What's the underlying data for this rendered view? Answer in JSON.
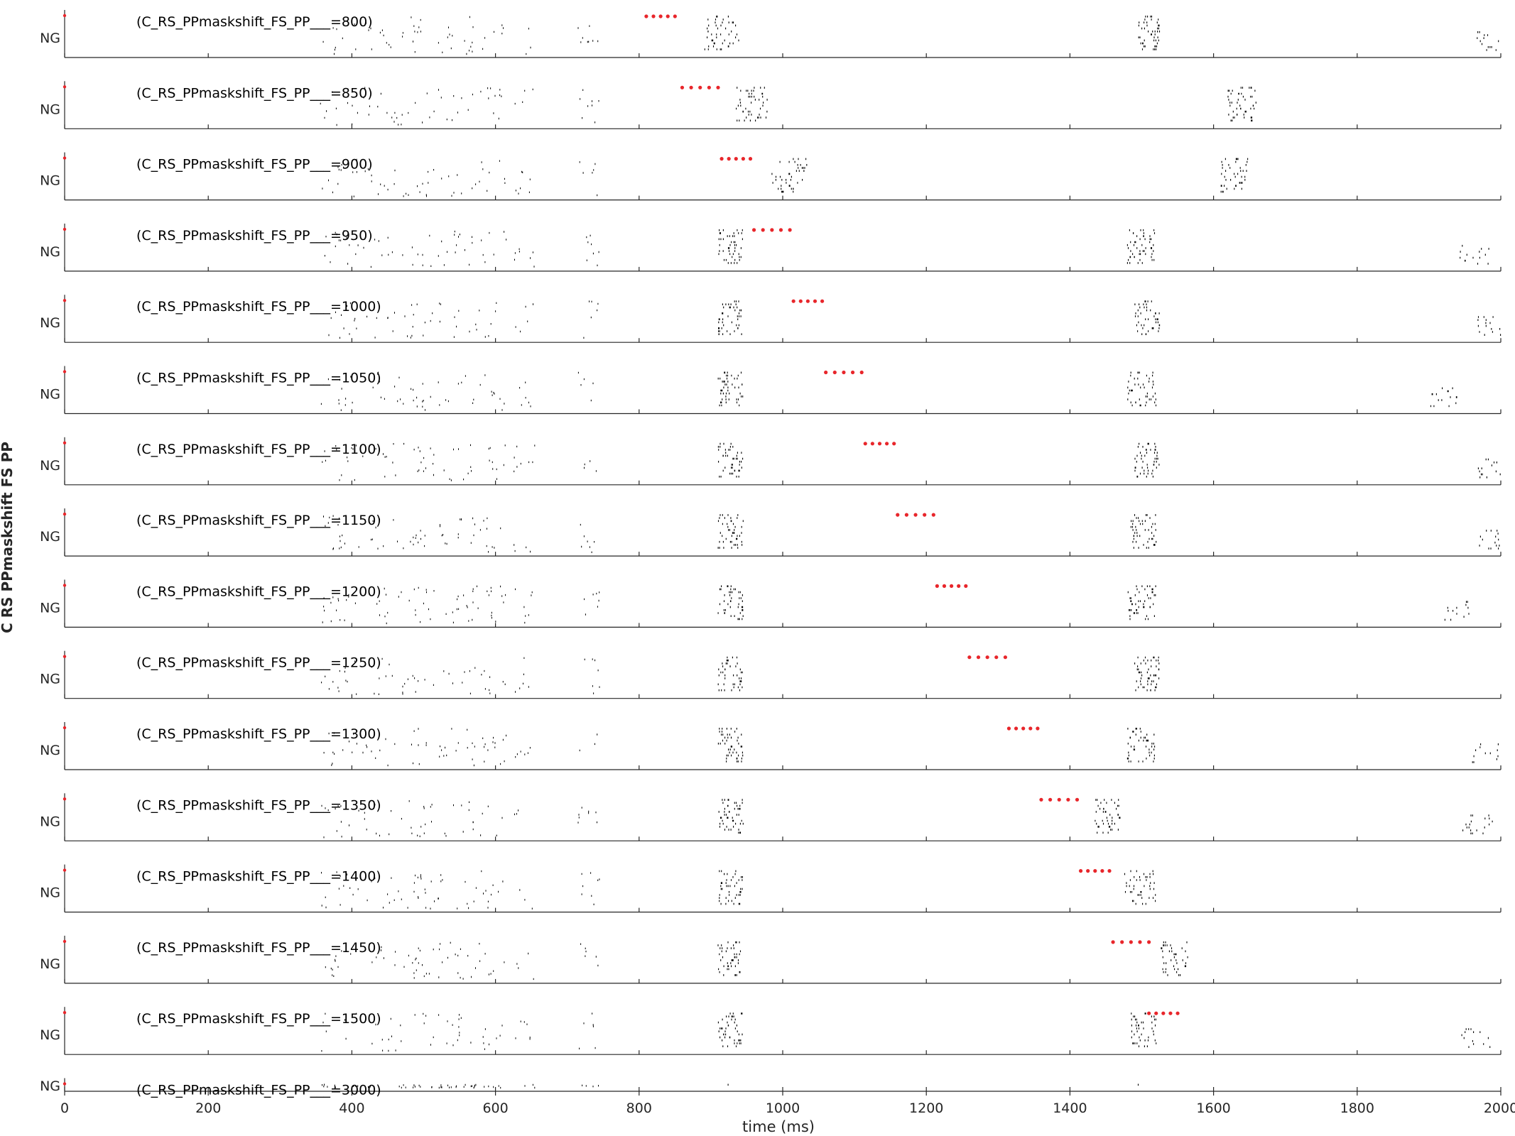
{
  "chart_data": {
    "type": "scatter",
    "plot_kind": "raster",
    "xlabel": "time (ms)",
    "ylabel": "C RS PPmaskshift FS PP",
    "xlim": [
      0,
      2000
    ],
    "xticks": [
      0,
      200,
      400,
      600,
      800,
      1000,
      1200,
      1400,
      1600,
      1800,
      2000
    ],
    "xtick_labels": [
      "0",
      "200",
      "400",
      "600",
      "800",
      "1000",
      "1200",
      "1400",
      "1600",
      "1800",
      "2000"
    ],
    "row_ytick_label": "NG",
    "spike_color": "#000000",
    "stimulus_color": "#e8262b",
    "panels": [
      {
        "label": "(C_RS_PPmaskshift_FS_PP___=800)",
        "value": 800,
        "stim_start": 810,
        "stim_end": 850,
        "burst1_start": 890,
        "burst1_end": 940,
        "burst2_start": 1495,
        "burst2_end": 1525,
        "burst3_start": 1965,
        "burst3_end": 2000
      },
      {
        "label": "(C_RS_PPmaskshift_FS_PP___=850)",
        "value": 850,
        "stim_start": 860,
        "stim_end": 910,
        "burst1_start": 935,
        "burst1_end": 980,
        "burst2_start": 1620,
        "burst2_end": 1660,
        "burst3_start": null,
        "burst3_end": null
      },
      {
        "label": "(C_RS_PPmaskshift_FS_PP___=900)",
        "value": 900,
        "stim_start": 915,
        "stim_end": 955,
        "burst1_start": 985,
        "burst1_end": 1035,
        "burst2_start": 1610,
        "burst2_end": 1650,
        "burst3_start": null,
        "burst3_end": null
      },
      {
        "label": "(C_RS_PPmaskshift_FS_PP___=950)",
        "value": 950,
        "stim_start": 960,
        "stim_end": 1010,
        "burst1_start": 910,
        "burst1_end": 945,
        "burst2_start": 1480,
        "burst2_end": 1520,
        "burst3_start": 1940,
        "burst3_end": 1985
      },
      {
        "label": "(C_RS_PPmaskshift_FS_PP___=1000)",
        "value": 1000,
        "stim_start": 1015,
        "stim_end": 1055,
        "burst1_start": 910,
        "burst1_end": 945,
        "burst2_start": 1490,
        "burst2_end": 1525,
        "burst3_start": 1965,
        "burst3_end": 2000
      },
      {
        "label": "(C_RS_PPmaskshift_FS_PP___=1050)",
        "value": 1050,
        "stim_start": 1060,
        "stim_end": 1110,
        "burst1_start": 910,
        "burst1_end": 945,
        "burst2_start": 1480,
        "burst2_end": 1520,
        "burst3_start": 1900,
        "burst3_end": 1940
      },
      {
        "label": "(C_RS_PPmaskshift_FS_PP___=1100)",
        "value": 1100,
        "stim_start": 1115,
        "stim_end": 1155,
        "burst1_start": 910,
        "burst1_end": 945,
        "burst2_start": 1490,
        "burst2_end": 1525,
        "burst3_start": 1965,
        "burst3_end": 2000
      },
      {
        "label": "(C_RS_PPmaskshift_FS_PP___=1150)",
        "value": 1150,
        "stim_start": 1160,
        "stim_end": 1210,
        "burst1_start": 910,
        "burst1_end": 945,
        "burst2_start": 1485,
        "burst2_end": 1520,
        "burst3_start": 1970,
        "burst3_end": 2000
      },
      {
        "label": "(C_RS_PPmaskshift_FS_PP___=1200)",
        "value": 1200,
        "stim_start": 1215,
        "stim_end": 1255,
        "burst1_start": 910,
        "burst1_end": 945,
        "burst2_start": 1480,
        "burst2_end": 1520,
        "burst3_start": 1900,
        "burst3_end": 1960
      },
      {
        "label": "(C_RS_PPmaskshift_FS_PP___=1250)",
        "value": 1250,
        "stim_start": 1260,
        "stim_end": 1310,
        "burst1_start": 910,
        "burst1_end": 945,
        "burst2_start": 1490,
        "burst2_end": 1525,
        "burst3_start": null,
        "burst3_end": null
      },
      {
        "label": "(C_RS_PPmaskshift_FS_PP___=1300)",
        "value": 1300,
        "stim_start": 1315,
        "stim_end": 1355,
        "burst1_start": 910,
        "burst1_end": 945,
        "burst2_start": 1480,
        "burst2_end": 1520,
        "burst3_start": 1960,
        "burst3_end": 2000
      },
      {
        "label": "(C_RS_PPmaskshift_FS_PP___=1350)",
        "value": 1350,
        "stim_start": 1360,
        "stim_end": 1410,
        "burst1_start": 910,
        "burst1_end": 945,
        "burst2_start": 1435,
        "burst2_end": 1470,
        "burst3_start": 1945,
        "burst3_end": 1990
      },
      {
        "label": "(C_RS_PPmaskshift_FS_PP___=1400)",
        "value": 1400,
        "stim_start": 1415,
        "stim_end": 1455,
        "burst1_start": 910,
        "burst1_end": 945,
        "burst2_start": 1475,
        "burst2_end": 1520,
        "burst3_start": null,
        "burst3_end": null
      },
      {
        "label": "(C_RS_PPmaskshift_FS_PP___=1450)",
        "value": 1450,
        "stim_start": 1460,
        "stim_end": 1510,
        "burst1_start": 910,
        "burst1_end": 945,
        "burst2_start": 1525,
        "burst2_end": 1565,
        "burst3_start": null,
        "burst3_end": null
      },
      {
        "label": "(C_RS_PPmaskshift_FS_PP___=1500)",
        "value": 1500,
        "stim_start": 1510,
        "stim_end": 1550,
        "burst1_start": 910,
        "burst1_end": 945,
        "burst2_start": 1485,
        "burst2_end": 1520,
        "burst3_start": 1940,
        "burst3_end": 1985
      },
      {
        "label": "(C_RS_PPmaskshift_FS_PP___=3000)",
        "value": 3000,
        "stim_start": null,
        "stim_end": null,
        "burst1_start": 910,
        "burst1_end": 945,
        "burst2_start": 1490,
        "burst2_end": 1525,
        "burst3_start": null,
        "burst3_end": null
      }
    ]
  }
}
